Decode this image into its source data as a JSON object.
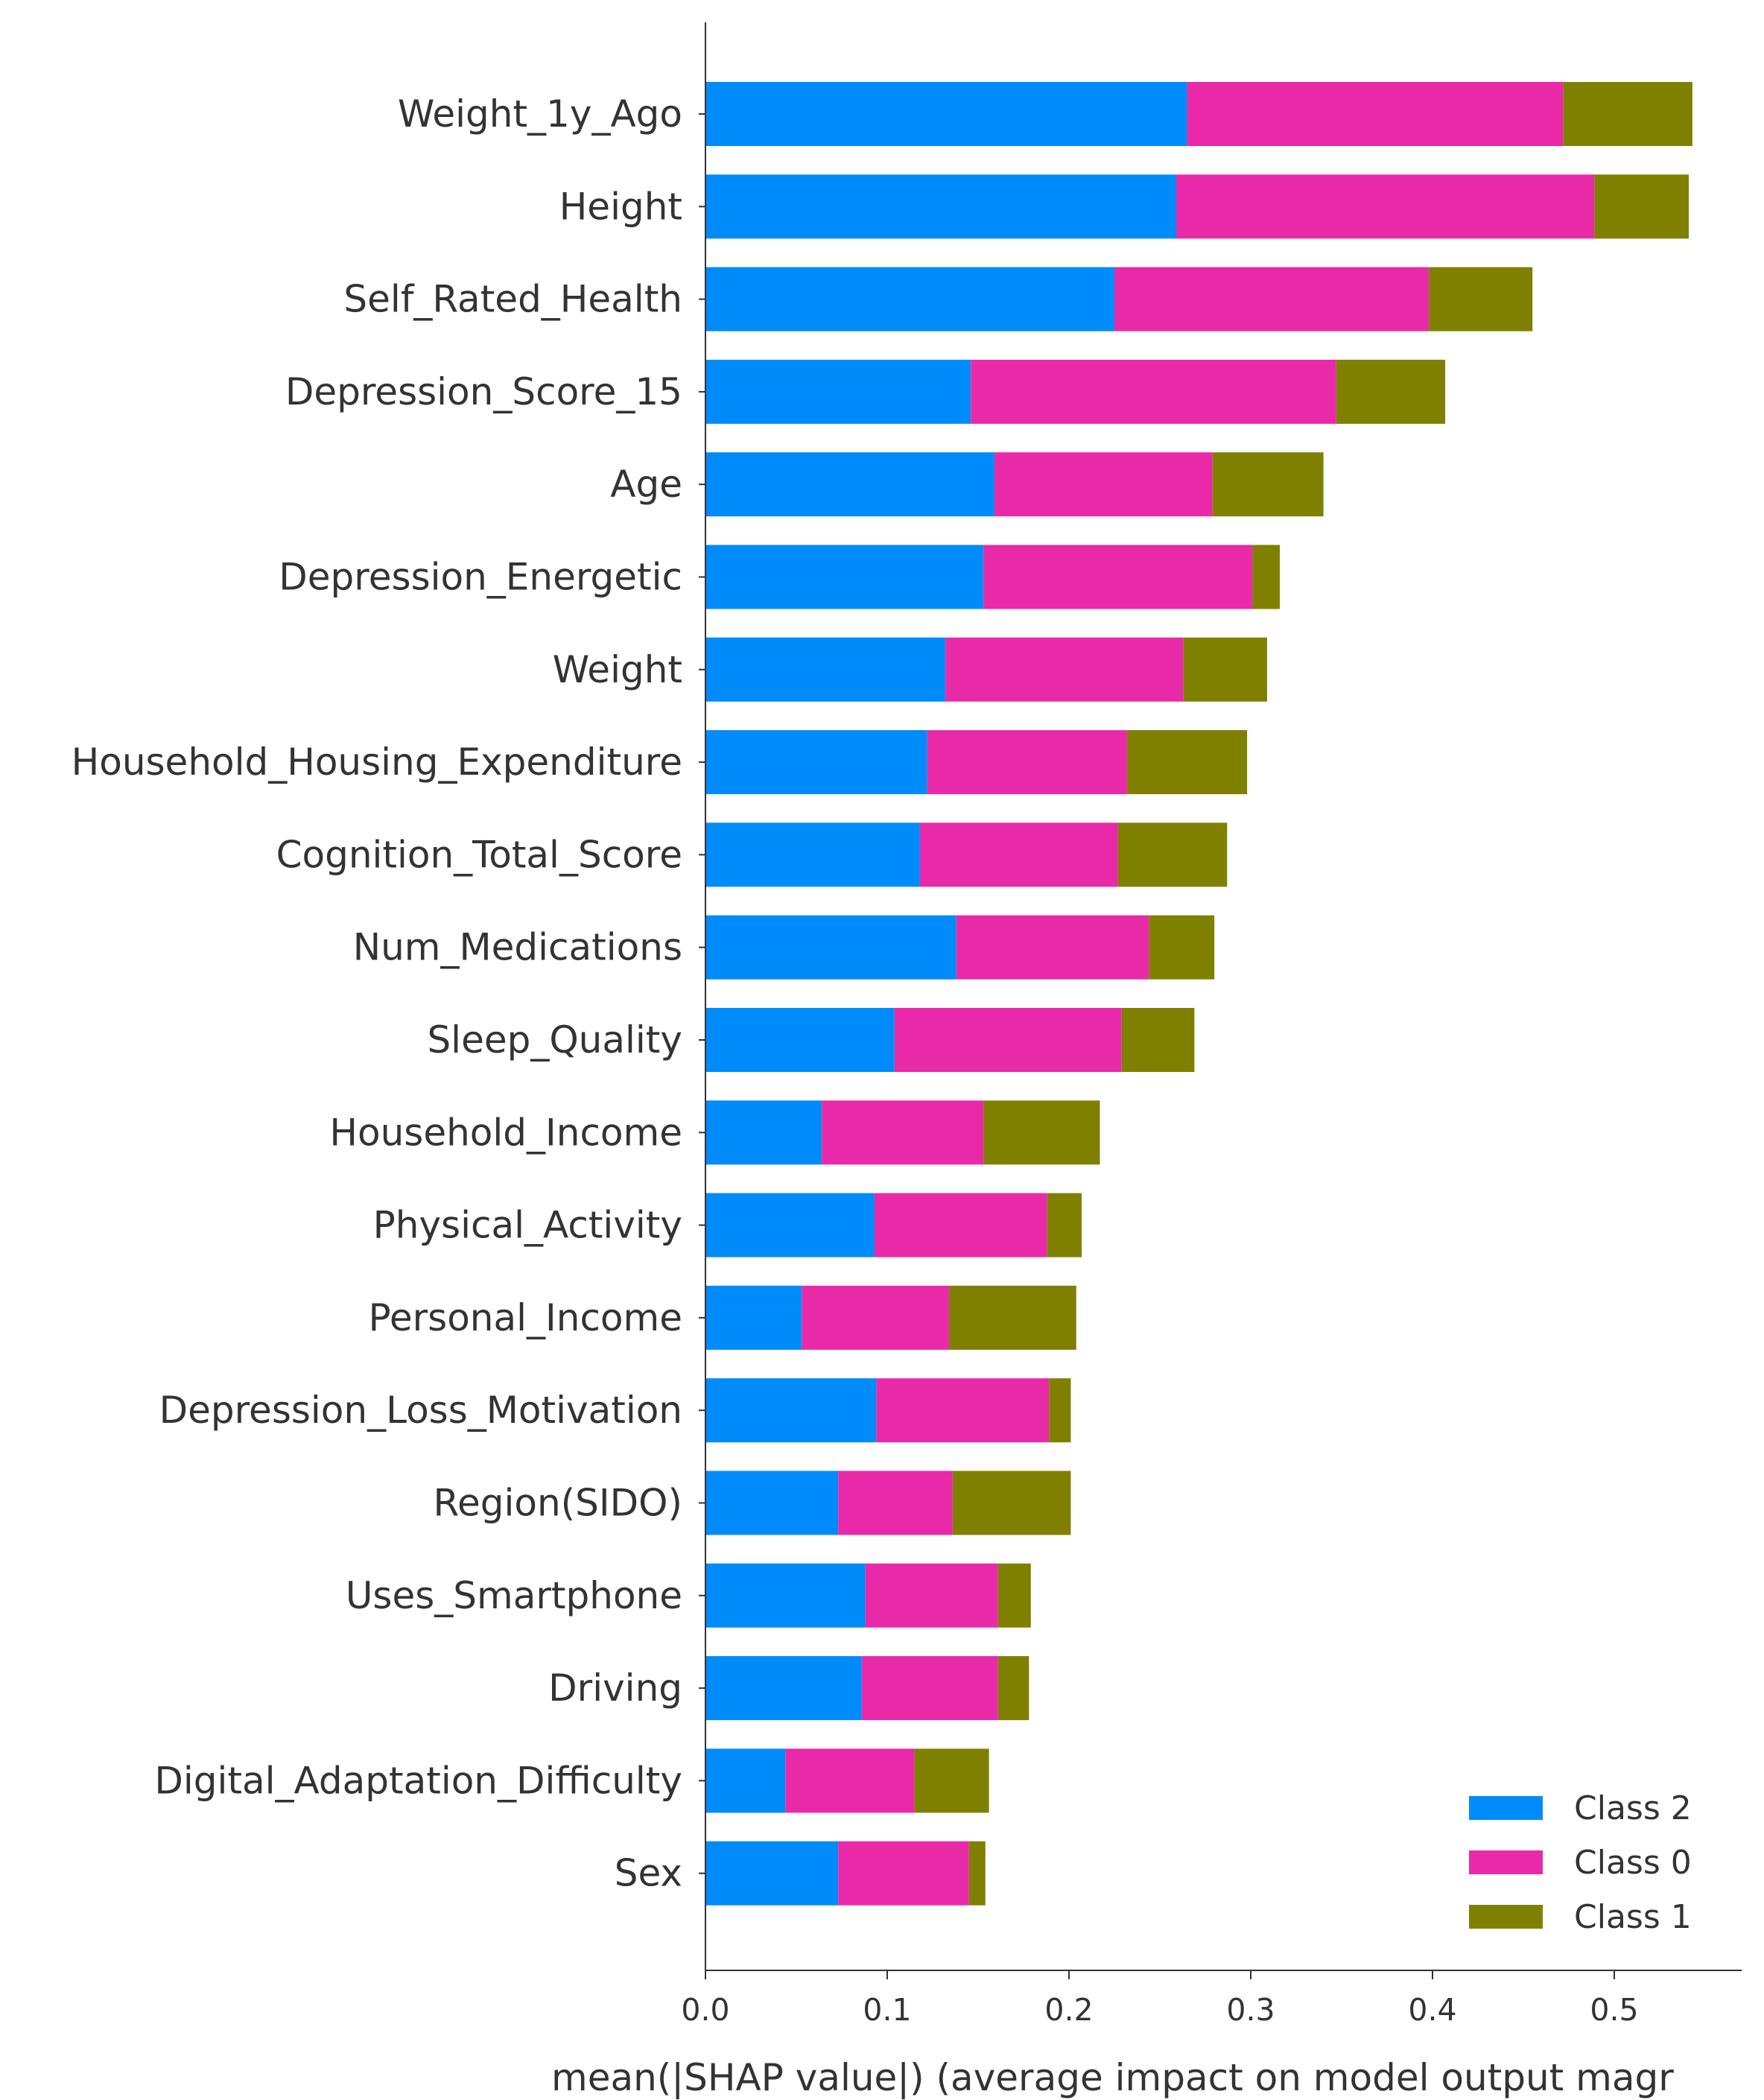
{
  "chart_data": {
    "type": "bar",
    "orientation": "horizontal",
    "stacked": true,
    "xlabel": "mean(|SHAP value|) (average impact on model output magr",
    "xlim": [
      0,
      0.571
    ],
    "xticks": [
      "0.0",
      "0.1",
      "0.2",
      "0.3",
      "0.4",
      "0.5"
    ],
    "grid": false,
    "legend_position": "bottom-right",
    "categories": [
      "Weight_1y_Ago",
      "Height",
      "Self_Rated_Health",
      "Depression_Score_15",
      "Age",
      "Depression_Energetic",
      "Weight",
      "Household_Housing_Expenditure",
      "Cognition_Total_Score",
      "Num_Medications",
      "Sleep_Quality",
      "Household_Income",
      "Physical_Activity",
      "Personal_Income",
      "Depression_Loss_Motivation",
      "Region(SIDO)",
      "Uses_Smartphone",
      "Driving",
      "Digital_Adaptation_Difficulty",
      "Sex"
    ],
    "series": [
      {
        "name": "Class 2",
        "color": "#008bfb",
        "values": [
          0.265,
          0.259,
          0.225,
          0.146,
          0.159,
          0.153,
          0.132,
          0.122,
          0.118,
          0.138,
          0.104,
          0.064,
          0.093,
          0.053,
          0.094,
          0.073,
          0.088,
          0.086,
          0.044,
          0.073
        ]
      },
      {
        "name": "Class 0",
        "color": "#e92aa8",
        "values": [
          0.207,
          0.23,
          0.173,
          0.201,
          0.12,
          0.148,
          0.131,
          0.11,
          0.109,
          0.106,
          0.125,
          0.089,
          0.095,
          0.081,
          0.095,
          0.063,
          0.073,
          0.075,
          0.071,
          0.072
        ]
      },
      {
        "name": "Class 1",
        "color": "#808000",
        "values": [
          0.071,
          0.052,
          0.057,
          0.06,
          0.061,
          0.015,
          0.046,
          0.066,
          0.06,
          0.036,
          0.04,
          0.064,
          0.019,
          0.07,
          0.012,
          0.065,
          0.018,
          0.017,
          0.041,
          0.009
        ]
      }
    ]
  }
}
